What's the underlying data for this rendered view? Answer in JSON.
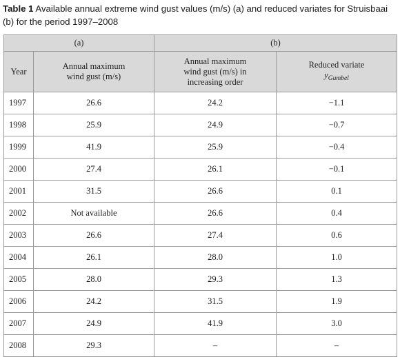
{
  "caption": {
    "label": "Table 1",
    "text": "Available annual extreme wind gust values (m/s) (a) and reduced variates for Struisbaai (b) for the period 1997–2008"
  },
  "table": {
    "group_a": "(a)",
    "group_b": "(b)",
    "columns": {
      "year": "Year",
      "max_gust": "Annual maximum wind gust (m/s)",
      "max_gust_ordered": "Annual maximum wind gust (m/s) in increasing order",
      "reduced_variate": "Reduced variate",
      "variate_symbol": "y",
      "variate_subscript": "Gumbel"
    },
    "rows": [
      {
        "year": "1997",
        "gust": "26.6",
        "ordered": "24.2",
        "variate": "−1.1"
      },
      {
        "year": "1998",
        "gust": "25.9",
        "ordered": "24.9",
        "variate": "−0.7"
      },
      {
        "year": "1999",
        "gust": "41.9",
        "ordered": "25.9",
        "variate": "−0.4"
      },
      {
        "year": "2000",
        "gust": "27.4",
        "ordered": "26.1",
        "variate": "−0.1"
      },
      {
        "year": "2001",
        "gust": "31.5",
        "ordered": "26.6",
        "variate": "0.1"
      },
      {
        "year": "2002",
        "gust": "Not available",
        "ordered": "26.6",
        "variate": "0.4"
      },
      {
        "year": "2003",
        "gust": "26.6",
        "ordered": "27.4",
        "variate": "0.6"
      },
      {
        "year": "2004",
        "gust": "26.1",
        "ordered": "28.0",
        "variate": "1.0"
      },
      {
        "year": "2005",
        "gust": "28.0",
        "ordered": "29.3",
        "variate": "1.3"
      },
      {
        "year": "2006",
        "gust": "24.2",
        "ordered": "31.5",
        "variate": "1.9"
      },
      {
        "year": "2007",
        "gust": "24.9",
        "ordered": "41.9",
        "variate": "3.0"
      },
      {
        "year": "2008",
        "gust": "29.3",
        "ordered": "–",
        "variate": "–"
      }
    ]
  }
}
